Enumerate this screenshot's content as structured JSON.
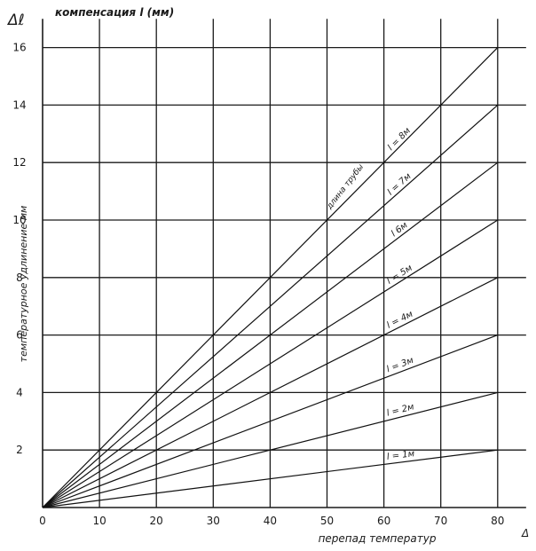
{
  "chart_data": {
    "type": "line",
    "title": "компенсация l (мм)",
    "corner_symbol": "Δℓ",
    "x_corner_symbol": "Δ",
    "xlabel": "перепад температур",
    "ylabel": "температурное удлинение мм",
    "x_ticks": [
      0,
      10,
      20,
      30,
      40,
      50,
      60,
      70,
      80
    ],
    "y_ticks": [
      2,
      4,
      6,
      8,
      10,
      12,
      14,
      16
    ],
    "xlim": [
      0,
      85
    ],
    "ylim": [
      0,
      17
    ],
    "grid": true,
    "annotation": "длина трубы",
    "series": [
      {
        "name": "l = 8м",
        "x": [
          0,
          80
        ],
        "y": [
          0,
          16
        ]
      },
      {
        "name": "l = 7м",
        "x": [
          0,
          80
        ],
        "y": [
          0,
          14
        ]
      },
      {
        "name": "l 6м",
        "x": [
          0,
          80
        ],
        "y": [
          0,
          12
        ]
      },
      {
        "name": "l = 5м",
        "x": [
          0,
          80
        ],
        "y": [
          0,
          10
        ]
      },
      {
        "name": "l = 4м",
        "x": [
          0,
          80
        ],
        "y": [
          0,
          8
        ]
      },
      {
        "name": "l = 3м",
        "x": [
          0,
          80
        ],
        "y": [
          0,
          6
        ]
      },
      {
        "name": "l = 2м",
        "x": [
          0,
          80
        ],
        "y": [
          0,
          4
        ]
      },
      {
        "name": "l = 1м",
        "x": [
          0,
          80
        ],
        "y": [
          0,
          2
        ]
      }
    ]
  }
}
